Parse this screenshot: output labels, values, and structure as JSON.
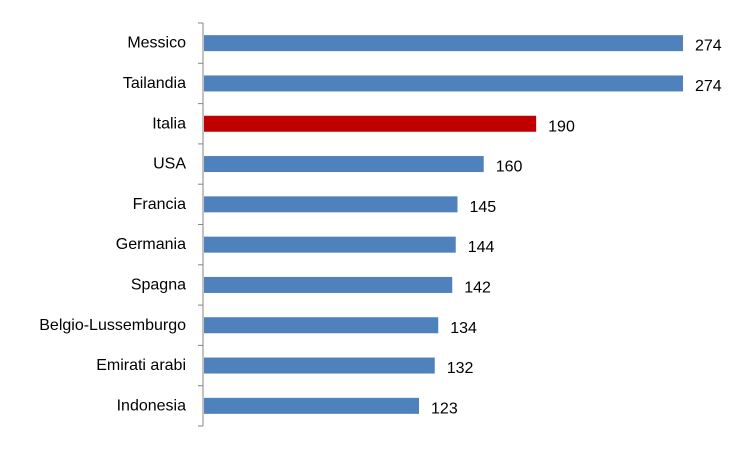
{
  "chart_data": {
    "type": "bar",
    "orientation": "horizontal",
    "categories": [
      "Messico",
      "Tailandia",
      "Italia",
      "USA",
      "Francia",
      "Germania",
      "Spagna",
      "Belgio-Lussemburgo",
      "Emirati arabi",
      "Indonesia"
    ],
    "values": [
      274,
      274,
      190,
      160,
      145,
      144,
      142,
      134,
      132,
      123
    ],
    "highlight_category": "Italia",
    "bar_color": "#4F81BD",
    "highlight_color": "#C00000",
    "axis_color": "#868686",
    "xlim": [
      0,
      274
    ],
    "data_labels": true,
    "grid": false,
    "legend": "none",
    "title": "",
    "xlabel": "",
    "ylabel": ""
  }
}
